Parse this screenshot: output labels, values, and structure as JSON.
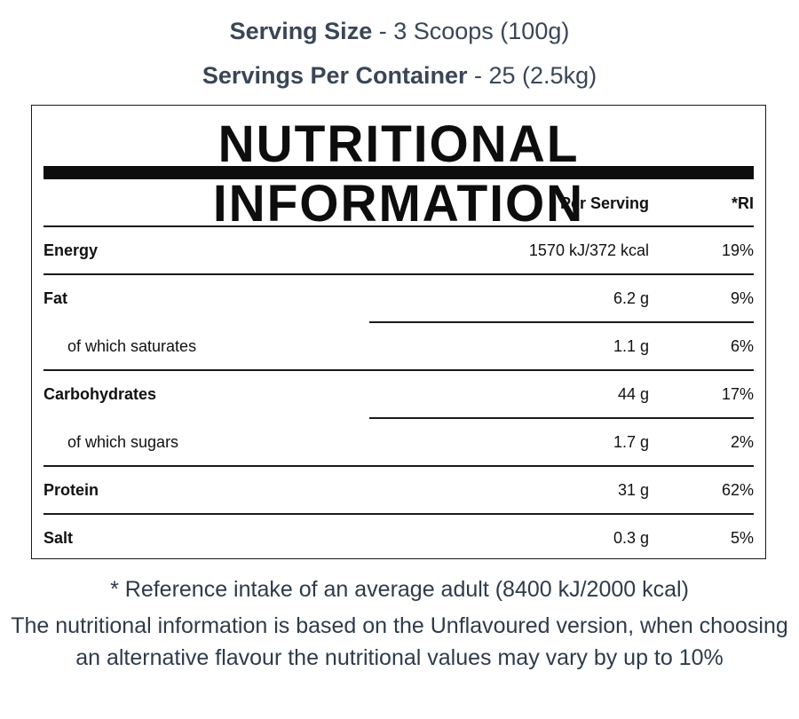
{
  "serving": {
    "size_label": "Serving Size",
    "size_value": " - 3 Scoops (100g)",
    "per_container_label": "Servings Per Container",
    "per_container_value": " - 25 (2.5kg)"
  },
  "table": {
    "title": "NUTRITIONAL INFORMATION",
    "columns": {
      "per_serving": "Per Serving",
      "ri": "*RI"
    },
    "rows": [
      {
        "name": "Energy",
        "per_serving": "1570 kJ/372 kcal",
        "ri": "19%"
      },
      {
        "name": "Fat",
        "per_serving": "6.2 g",
        "ri": "9%"
      },
      {
        "name": "of which saturates",
        "per_serving": "1.1 g",
        "ri": "6%"
      },
      {
        "name": "Carbohydrates",
        "per_serving": "44 g",
        "ri": "17%"
      },
      {
        "name": "of which sugars",
        "per_serving": "1.7 g",
        "ri": "2%"
      },
      {
        "name": "Protein",
        "per_serving": "31 g",
        "ri": "62%"
      },
      {
        "name": "Salt",
        "per_serving": "0.3 g",
        "ri": "5%"
      }
    ]
  },
  "footer": {
    "reference_note": "* Reference intake of an average adult (8400 kJ/2000 kcal)",
    "disclaimer": "The nutritional information is based on the Unflavoured version, when choosing an alternative flavour the nutritional values may vary by up to 10%"
  }
}
